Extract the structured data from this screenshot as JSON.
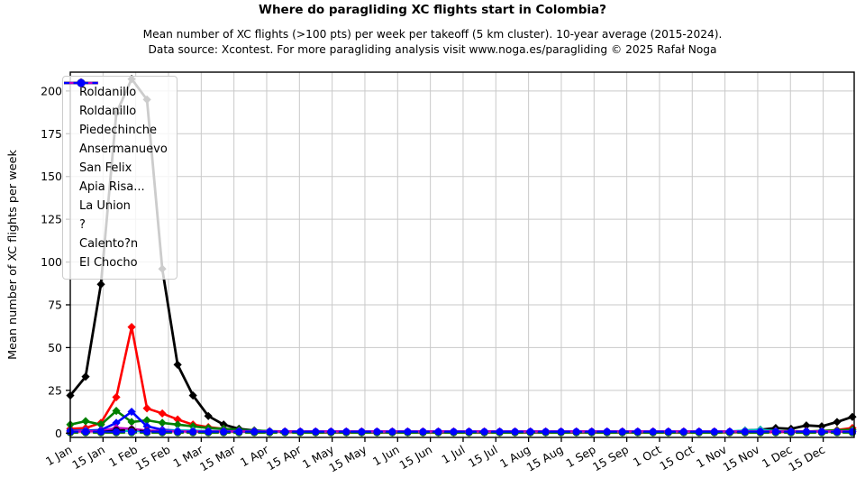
{
  "header": {
    "title": "Where do paragliding XC flights start in Colombia?",
    "subtitle1": "Mean number of XC flights (>100 pts) per week per takeoff (5 km cluster). 10-year average (2015-2024).",
    "subtitle2": "Data source: Xcontest. For more paragliding analysis visit www.noga.es/paragliding © 2025 Rafał Noga"
  },
  "chart_data": {
    "type": "line",
    "title": "Where do paragliding XC flights start in Colombia?",
    "xlabel": "",
    "ylabel": "Mean number of XC flights per week",
    "x_unit": "week of year (52 weekly points, 1 Jan – late Dec)",
    "grid": true,
    "legend_position": "upper left",
    "ylim": [
      -2.5,
      211
    ],
    "yticks": [
      0,
      25,
      50,
      75,
      100,
      125,
      150,
      175,
      200
    ],
    "xtick_labels": [
      "1 Jan",
      "15 Jan",
      "1 Feb",
      "15 Feb",
      "1 Mar",
      "15 Mar",
      "1 Apr",
      "15 Apr",
      "1 May",
      "15 May",
      "1 Jun",
      "15 Jun",
      "1 Jul",
      "15 Jul",
      "1 Aug",
      "15 Aug",
      "1 Sep",
      "15 Sep",
      "1 Oct",
      "15 Oct",
      "1 Nov",
      "15 Nov",
      "1 Dec",
      "15 Dec"
    ],
    "series": [
      {
        "name": "Roldanillo",
        "color": "#000000",
        "style": "solid",
        "marker": "diamond",
        "linewidth": 2.8,
        "values": [
          22,
          33,
          87,
          187,
          207,
          195,
          96,
          40,
          22,
          10,
          5,
          2.5,
          1.5,
          1,
          0.7,
          0.6,
          0.5,
          0.5,
          0.5,
          0.5,
          0.5,
          0.5,
          0.5,
          0.5,
          0.5,
          0.5,
          0.5,
          0.5,
          0.5,
          0.5,
          0.5,
          0.5,
          0.5,
          0.5,
          0.5,
          0.5,
          0.5,
          0.5,
          0.5,
          0.5,
          0.5,
          0.5,
          0.5,
          0.6,
          1.5,
          2,
          3,
          2.5,
          4.5,
          4,
          6.5,
          9.5
        ]
      },
      {
        "name": "Roldanillo",
        "color": "#ff0000",
        "style": "solid",
        "marker": "diamond",
        "linewidth": 2.6,
        "values": [
          2.5,
          3,
          6,
          21,
          62,
          14.5,
          11.5,
          8,
          5,
          3.5,
          2.5,
          1.5,
          1.2,
          1,
          0.8,
          0.6,
          0.5,
          0.5,
          0.5,
          0.5,
          0.5,
          0.5,
          0.5,
          0.5,
          0.5,
          0.5,
          0.5,
          0.5,
          0.5,
          0.5,
          0.5,
          0.5,
          0.5,
          0.5,
          0.5,
          0.5,
          0.5,
          0.5,
          0.5,
          0.5,
          0.5,
          0.5,
          0.5,
          0.5,
          0.5,
          0.5,
          0.6,
          0.8,
          1,
          1.2,
          1.8,
          3
        ]
      },
      {
        "name": "Piedechinche",
        "color": "#008000",
        "style": "solid",
        "marker": "diamond",
        "linewidth": 2.6,
        "values": [
          5,
          7,
          5,
          13,
          6.5,
          7.5,
          6,
          5,
          4,
          3,
          2.5,
          2,
          1.5,
          1.2,
          1,
          0.8,
          0.7,
          0.6,
          0.6,
          0.6,
          0.6,
          0.6,
          0.6,
          0.6,
          0.6,
          0.6,
          0.6,
          0.6,
          0.6,
          0.6,
          0.6,
          0.6,
          0.6,
          0.6,
          0.6,
          0.6,
          0.6,
          0.6,
          0.6,
          0.6,
          0.6,
          0.6,
          0.6,
          0.6,
          0.7,
          0.8,
          1,
          1.2,
          1,
          1.3,
          1.6,
          2
        ]
      },
      {
        "name": "Ansermanuevo",
        "color": "#0000ff",
        "style": "solid",
        "marker": "diamond",
        "linewidth": 2.6,
        "values": [
          1.5,
          1.5,
          1.8,
          6,
          12.5,
          4,
          2,
          1.5,
          1.2,
          1.2,
          1.2,
          1.2,
          1.2,
          1,
          1,
          1,
          1,
          1,
          1,
          1,
          1,
          1,
          1,
          1,
          1,
          1,
          1,
          1,
          1,
          1,
          1,
          1,
          1,
          1,
          1,
          1,
          1,
          1,
          1,
          1,
          1,
          1,
          1,
          1,
          1,
          1,
          1,
          1,
          1,
          1,
          1,
          1
        ]
      },
      {
        "name": "San Felix",
        "color": "#00bfbf",
        "style": "solid",
        "marker": "diamond",
        "linewidth": 2.6,
        "values": [
          1.2,
          1.2,
          1.2,
          1.5,
          1.2,
          1.2,
          1.2,
          1.5,
          1.5,
          1.2,
          1,
          0.8,
          0.8,
          0.8,
          0.8,
          0.8,
          0.8,
          0.8,
          0.8,
          0.8,
          0.8,
          0.8,
          0.8,
          0.8,
          0.8,
          0.8,
          0.8,
          0.8,
          0.8,
          0.8,
          0.8,
          0.8,
          0.8,
          0.8,
          0.8,
          0.8,
          0.8,
          0.8,
          0.8,
          0.8,
          0.8,
          0.8,
          0.8,
          1,
          1.5,
          2,
          1.2,
          1,
          1,
          1,
          1,
          1.2
        ]
      },
      {
        "name": "Apia Risa...",
        "color": "#bf00bf",
        "style": "solid",
        "marker": "diamond",
        "linewidth": 2.6,
        "values": [
          1,
          1,
          1.2,
          3,
          2.5,
          1.5,
          1.2,
          1,
          1,
          1,
          1,
          1,
          1,
          1,
          1,
          1,
          1,
          1,
          1,
          1,
          1,
          1,
          1,
          1,
          1,
          1,
          1,
          1,
          1,
          1,
          1,
          1,
          1,
          1,
          1,
          1,
          1,
          1,
          1,
          1,
          1,
          1,
          1,
          1,
          1,
          1,
          1,
          1,
          1,
          1,
          1,
          1
        ]
      },
      {
        "name": "La Union",
        "color": "#000000",
        "style": "dashed",
        "marker": "circle",
        "linewidth": 2.2,
        "values": [
          0.5,
          0.5,
          0.8,
          1.5,
          2,
          1,
          0.6,
          0.4,
          0.4,
          0.4,
          0.4,
          0.4,
          0.4,
          0.4,
          0.4,
          0.4,
          0.4,
          0.4,
          0.4,
          0.4,
          0.4,
          0.4,
          0.4,
          0.4,
          0.4,
          0.4,
          0.4,
          0.4,
          0.4,
          0.4,
          0.4,
          0.4,
          0.4,
          0.4,
          0.4,
          0.4,
          0.4,
          0.4,
          0.4,
          0.4,
          0.4,
          0.4,
          0.4,
          0.4,
          0.4,
          0.4,
          0.4,
          0.4,
          0.4,
          0.4,
          0.4,
          0.5
        ]
      },
      {
        "name": "?",
        "color": "#ff0000",
        "style": "dashed",
        "marker": "circle",
        "linewidth": 2.2,
        "values": [
          0.3,
          0.3,
          0.3,
          0.3,
          1,
          0.3,
          0.3,
          0.3,
          0.3,
          0.3,
          0.3,
          0.3,
          0.3,
          0.3,
          0.3,
          0.3,
          0.3,
          0.3,
          0.3,
          0.3,
          0.3,
          0.3,
          0.3,
          0.3,
          0.3,
          0.3,
          0.3,
          0.3,
          0.3,
          0.3,
          0.3,
          0.3,
          0.3,
          0.3,
          0.3,
          0.3,
          0.3,
          0.3,
          0.3,
          0.3,
          0.3,
          0.3,
          0.3,
          0.3,
          0.3,
          0.3,
          0.3,
          0.3,
          0.3,
          0.3,
          0.3,
          0.5
        ]
      },
      {
        "name": "Calento?n",
        "color": "#008000",
        "style": "dashed",
        "marker": "circle",
        "linewidth": 2.2,
        "values": [
          0.25,
          0.25,
          0.25,
          0.25,
          0.25,
          0.25,
          0.25,
          0.25,
          0.25,
          0.25,
          0.25,
          0.25,
          0.25,
          0.25,
          0.25,
          0.25,
          0.25,
          0.25,
          0.25,
          0.25,
          0.25,
          0.25,
          0.25,
          0.25,
          0.25,
          0.25,
          0.25,
          0.25,
          0.25,
          0.25,
          0.25,
          0.25,
          0.25,
          0.25,
          0.25,
          0.25,
          0.25,
          0.25,
          0.25,
          0.25,
          0.25,
          0.25,
          0.25,
          0.25,
          0.25,
          0.25,
          0.25,
          0.25,
          0.25,
          0.25,
          0.25,
          0.25
        ]
      },
      {
        "name": "El Chocho",
        "color": "#0000ff",
        "style": "dashed",
        "marker": "circle",
        "linewidth": 2.2,
        "values": [
          0.8,
          0.8,
          0.8,
          0.8,
          0.8,
          0.8,
          0.8,
          0.8,
          0.8,
          0.8,
          0.8,
          0.8,
          0.8,
          0.8,
          0.8,
          0.8,
          0.8,
          0.8,
          0.8,
          0.8,
          0.8,
          0.8,
          0.8,
          0.8,
          0.8,
          0.8,
          0.8,
          0.8,
          0.8,
          0.8,
          0.8,
          0.8,
          0.8,
          0.8,
          0.8,
          0.8,
          0.8,
          0.8,
          0.8,
          0.8,
          0.8,
          0.8,
          0.8,
          0.8,
          0.8,
          0.8,
          0.8,
          0.8,
          0.8,
          0.8,
          0.8,
          0.8
        ]
      }
    ]
  }
}
